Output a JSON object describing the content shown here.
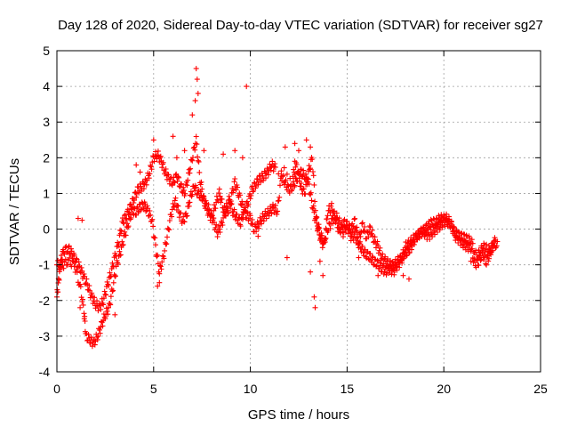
{
  "chart_data": {
    "type": "scatter",
    "title": "Day 128 of 2020, Sidereal Day-to-day VTEC variation (SDTVAR) for receiver sg27",
    "xlabel": "GPS time / hours",
    "ylabel": "SDTVAR / TECUs",
    "xlim": [
      0,
      25
    ],
    "ylim": [
      -4,
      5
    ],
    "xticks": [
      0,
      5,
      10,
      15,
      20,
      25
    ],
    "yticks": [
      -4,
      -3,
      -2,
      -1,
      0,
      1,
      2,
      3,
      4,
      5
    ],
    "grid": true,
    "marker": "+",
    "color": "#ff0000",
    "series": [
      {
        "name": "SDTVAR",
        "trace": [
          [
            0.0,
            -1.9
          ],
          [
            0.1,
            -1.4
          ],
          [
            0.2,
            -0.9
          ],
          [
            0.35,
            -0.6
          ],
          [
            0.6,
            -0.55
          ],
          [
            0.8,
            -0.7
          ],
          [
            1.0,
            -0.9
          ],
          [
            1.2,
            -1.1
          ],
          [
            1.4,
            -1.35
          ],
          [
            1.6,
            -1.6
          ],
          [
            1.8,
            -1.9
          ],
          [
            2.0,
            -2.1
          ],
          [
            2.2,
            -2.2
          ],
          [
            2.4,
            -2.0
          ],
          [
            2.6,
            -1.6
          ],
          [
            2.8,
            -1.2
          ],
          [
            3.0,
            -0.8
          ],
          [
            3.2,
            -0.3
          ],
          [
            3.4,
            0.2
          ],
          [
            3.6,
            0.4
          ],
          [
            3.8,
            0.6
          ],
          [
            4.0,
            0.9
          ],
          [
            4.2,
            1.1
          ],
          [
            4.4,
            1.2
          ],
          [
            4.6,
            1.3
          ],
          [
            4.8,
            1.6
          ],
          [
            5.0,
            2.0
          ],
          [
            5.2,
            2.1
          ],
          [
            5.4,
            1.9
          ],
          [
            5.6,
            1.6
          ],
          [
            5.8,
            1.4
          ],
          [
            6.0,
            1.3
          ],
          [
            6.2,
            1.5
          ],
          [
            6.4,
            1.2
          ],
          [
            6.6,
            1.0
          ],
          [
            6.8,
            1.5
          ],
          [
            7.0,
            2.0
          ],
          [
            7.2,
            2.5
          ],
          [
            7.4,
            1.4
          ],
          [
            7.6,
            0.8
          ],
          [
            7.8,
            0.5
          ],
          [
            8.0,
            0.3
          ],
          [
            8.2,
            0.7
          ],
          [
            8.4,
            1.0
          ],
          [
            8.6,
            0.6
          ],
          [
            8.8,
            0.4
          ],
          [
            9.0,
            0.9
          ],
          [
            9.2,
            1.3
          ],
          [
            9.4,
            1.0
          ],
          [
            9.6,
            0.6
          ],
          [
            9.8,
            0.4
          ],
          [
            10.0,
            0.3
          ],
          [
            10.2,
            0.0
          ],
          [
            10.4,
            0.1
          ],
          [
            10.6,
            0.3
          ],
          [
            10.8,
            0.4
          ],
          [
            11.0,
            0.5
          ],
          [
            11.2,
            0.6
          ],
          [
            11.4,
            0.5
          ],
          [
            11.6,
            1.5
          ],
          [
            11.8,
            1.3
          ],
          [
            12.0,
            1.1
          ],
          [
            12.2,
            1.2
          ],
          [
            12.4,
            1.4
          ],
          [
            12.6,
            1.6
          ],
          [
            12.8,
            1.5
          ],
          [
            13.0,
            1.3
          ],
          [
            13.2,
            0.7
          ],
          [
            13.4,
            0.2
          ],
          [
            13.6,
            -0.2
          ],
          [
            13.8,
            -0.5
          ],
          [
            14.0,
            0.5
          ],
          [
            14.2,
            0.6
          ],
          [
            14.4,
            0.3
          ],
          [
            14.6,
            -0.1
          ],
          [
            14.8,
            0.2
          ],
          [
            15.0,
            0.1
          ],
          [
            15.2,
            0.0
          ],
          [
            15.4,
            0.2
          ],
          [
            15.6,
            -0.3
          ],
          [
            15.8,
            0.1
          ],
          [
            16.0,
            -0.2
          ],
          [
            16.2,
            0.0
          ],
          [
            16.4,
            -0.3
          ],
          [
            16.6,
            -0.5
          ],
          [
            16.8,
            -0.8
          ],
          [
            17.0,
            -0.9
          ],
          [
            17.2,
            -1.0
          ],
          [
            17.4,
            -1.0
          ],
          [
            17.6,
            -0.9
          ],
          [
            17.8,
            -0.8
          ],
          [
            18.0,
            -0.7
          ],
          [
            18.2,
            -0.6
          ],
          [
            18.4,
            -0.4
          ],
          [
            18.6,
            -0.2
          ],
          [
            18.8,
            -0.1
          ],
          [
            19.0,
            -0.1
          ],
          [
            19.2,
            -0.2
          ],
          [
            19.4,
            -0.1
          ],
          [
            19.6,
            0.0
          ],
          [
            19.8,
            0.1
          ],
          [
            20.0,
            0.2
          ],
          [
            20.2,
            0.2
          ],
          [
            20.4,
            0.1
          ],
          [
            20.6,
            -0.1
          ],
          [
            20.8,
            -0.2
          ],
          [
            21.0,
            -0.2
          ],
          [
            21.2,
            -0.3
          ],
          [
            21.4,
            -0.3
          ],
          [
            21.7,
            -0.8
          ],
          [
            21.9,
            -0.6
          ],
          [
            22.1,
            -0.5
          ],
          [
            22.3,
            -0.6
          ],
          [
            22.5,
            -0.5
          ],
          [
            22.7,
            -0.4
          ]
        ],
        "trace2": [
          [
            0.0,
            -1.0
          ],
          [
            0.3,
            -1.0
          ],
          [
            0.6,
            -0.9
          ],
          [
            0.9,
            -1.0
          ],
          [
            1.2,
            -1.6
          ],
          [
            1.4,
            -2.3
          ],
          [
            1.5,
            -3.0
          ],
          [
            1.7,
            -3.1
          ],
          [
            1.9,
            -3.2
          ],
          [
            2.1,
            -3.0
          ],
          [
            2.3,
            -2.7
          ],
          [
            2.5,
            -2.4
          ],
          [
            2.7,
            -2.2
          ],
          [
            2.9,
            -1.6
          ],
          [
            3.1,
            -1.0
          ],
          [
            3.3,
            -0.6
          ],
          [
            3.5,
            -0.2
          ],
          [
            3.7,
            0.2
          ],
          [
            3.9,
            0.5
          ],
          [
            4.1,
            0.5
          ],
          [
            4.3,
            0.6
          ],
          [
            4.5,
            0.7
          ],
          [
            4.7,
            0.5
          ],
          [
            4.9,
            0.3
          ],
          [
            5.1,
            -0.5
          ],
          [
            5.3,
            -1.2
          ],
          [
            5.5,
            -0.8
          ],
          [
            5.7,
            -0.2
          ],
          [
            5.9,
            0.4
          ],
          [
            6.1,
            0.8
          ],
          [
            6.3,
            0.5
          ],
          [
            6.5,
            0.2
          ],
          [
            6.7,
            0.4
          ],
          [
            6.9,
            0.9
          ],
          [
            7.1,
            1.2
          ],
          [
            7.3,
            1.0
          ],
          [
            7.5,
            0.9
          ],
          [
            7.7,
            0.7
          ],
          [
            7.9,
            0.5
          ],
          [
            8.1,
            0.2
          ],
          [
            8.3,
            -0.1
          ],
          [
            8.5,
            0.1
          ],
          [
            8.7,
            0.5
          ],
          [
            8.9,
            0.8
          ],
          [
            9.1,
            0.5
          ],
          [
            9.3,
            0.3
          ],
          [
            9.5,
            0.2
          ],
          [
            9.7,
            0.5
          ],
          [
            9.9,
            0.8
          ],
          [
            10.1,
            1.1
          ],
          [
            10.3,
            1.3
          ],
          [
            10.5,
            1.4
          ],
          [
            10.7,
            1.5
          ],
          [
            10.9,
            1.6
          ],
          [
            11.1,
            1.8
          ],
          [
            11.3,
            1.7
          ],
          [
            12.2,
            1.5
          ],
          [
            12.4,
            1.8
          ],
          [
            12.6,
            1.2
          ],
          [
            12.8,
            1.0
          ],
          [
            13.0,
            1.6
          ],
          [
            13.2,
            2.0
          ],
          [
            13.4,
            0.3
          ],
          [
            13.6,
            -0.1
          ],
          [
            13.8,
            -0.4
          ],
          [
            14.0,
            0.0
          ],
          [
            14.2,
            0.2
          ],
          [
            14.4,
            0.4
          ],
          [
            14.6,
            0.2
          ],
          [
            14.8,
            -0.1
          ],
          [
            15.0,
            0.1
          ],
          [
            15.2,
            -0.2
          ],
          [
            15.4,
            -0.2
          ],
          [
            15.6,
            -0.4
          ],
          [
            15.8,
            -0.6
          ],
          [
            16.0,
            -0.7
          ],
          [
            16.2,
            -0.8
          ],
          [
            16.4,
            -0.9
          ],
          [
            16.6,
            -1.0
          ],
          [
            16.8,
            -1.1
          ],
          [
            17.0,
            -1.2
          ],
          [
            17.2,
            -1.1
          ],
          [
            17.4,
            -1.2
          ],
          [
            17.6,
            -1.0
          ],
          [
            17.8,
            -0.9
          ],
          [
            18.0,
            -0.5
          ],
          [
            18.2,
            -0.4
          ],
          [
            18.4,
            -0.3
          ],
          [
            18.6,
            -0.2
          ],
          [
            18.8,
            -0.1
          ],
          [
            19.0,
            0.0
          ],
          [
            19.2,
            0.1
          ],
          [
            19.4,
            0.2
          ],
          [
            19.6,
            0.2
          ],
          [
            19.8,
            0.3
          ],
          [
            20.0,
            0.3
          ],
          [
            20.2,
            0.3
          ],
          [
            20.4,
            0.1
          ],
          [
            20.6,
            -0.2
          ],
          [
            20.8,
            -0.3
          ],
          [
            21.0,
            -0.4
          ],
          [
            21.2,
            -0.5
          ],
          [
            21.4,
            -0.5
          ],
          [
            21.6,
            -1.0
          ],
          [
            21.8,
            -0.9
          ],
          [
            22.0,
            -0.7
          ],
          [
            22.2,
            -0.9
          ],
          [
            22.4,
            -0.7
          ],
          [
            22.6,
            -0.3
          ],
          [
            22.8,
            -0.5
          ]
        ],
        "outliers": [
          [
            7.2,
            4.5
          ],
          [
            7.25,
            4.2
          ],
          [
            7.3,
            3.8
          ],
          [
            7.0,
            3.2
          ],
          [
            7.15,
            3.6
          ],
          [
            9.8,
            4.0
          ],
          [
            6.0,
            2.6
          ],
          [
            5.0,
            2.5
          ],
          [
            4.1,
            1.8
          ],
          [
            4.3,
            1.6
          ],
          [
            11.8,
            2.3
          ],
          [
            12.3,
            2.4
          ],
          [
            12.5,
            2.2
          ],
          [
            12.9,
            2.5
          ],
          [
            13.1,
            2.3
          ],
          [
            11.9,
            -0.8
          ],
          [
            12.3,
            1.9
          ],
          [
            13.1,
            -1.2
          ],
          [
            13.3,
            -1.9
          ],
          [
            13.35,
            -2.2
          ],
          [
            13.6,
            -0.9
          ],
          [
            13.75,
            -1.3
          ],
          [
            3.0,
            -2.4
          ],
          [
            1.2,
            -2.2
          ],
          [
            1.1,
            0.3
          ],
          [
            1.3,
            0.25
          ],
          [
            5.2,
            -1.6
          ],
          [
            5.3,
            -1.5
          ],
          [
            6.2,
            2.0
          ],
          [
            6.6,
            2.2
          ],
          [
            7.6,
            2.2
          ],
          [
            8.6,
            2.1
          ],
          [
            9.2,
            2.2
          ],
          [
            9.6,
            2.0
          ],
          [
            10.4,
            -0.2
          ],
          [
            15.6,
            -0.8
          ],
          [
            16.6,
            -1.3
          ],
          [
            18.2,
            -1.4
          ],
          [
            17.9,
            -1.3
          ],
          [
            21.4,
            -0.9
          ]
        ]
      }
    ]
  }
}
